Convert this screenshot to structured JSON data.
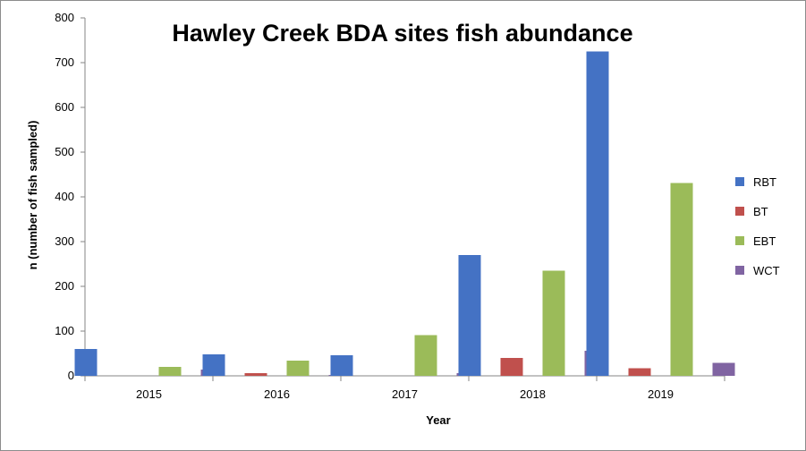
{
  "chart_data": {
    "type": "bar",
    "title": "Hawley Creek BDA sites fish abundance",
    "xlabel": "Year",
    "ylabel": "n (number of fish sampled)",
    "categories": [
      "2015",
      "2016",
      "2017",
      "2018",
      "2019"
    ],
    "series": [
      {
        "name": "RBT",
        "color": "#4472C4",
        "values": [
          60,
          48,
          46,
          270,
          725
        ]
      },
      {
        "name": "BT",
        "color": "#C0504D",
        "values": [
          0,
          6,
          0,
          40,
          17
        ]
      },
      {
        "name": "EBT",
        "color": "#9BBB59",
        "values": [
          20,
          34,
          91,
          235,
          431
        ]
      },
      {
        "name": "WCT",
        "color": "#8064A2",
        "values": [
          14,
          2,
          6,
          56,
          29
        ]
      }
    ],
    "ylim": [
      0,
      800
    ],
    "yticks": [
      0,
      100,
      200,
      300,
      400,
      500,
      600,
      700,
      800
    ],
    "grid": false,
    "legend_position": "right"
  }
}
